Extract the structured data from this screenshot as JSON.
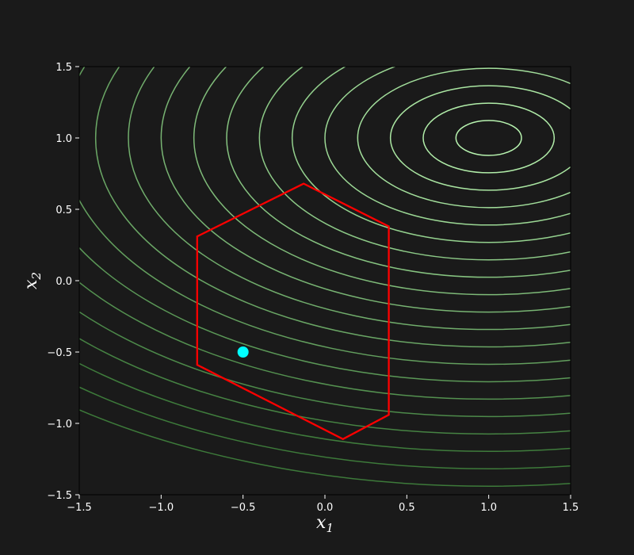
{
  "chart_data": {
    "type": "contour",
    "title": "",
    "xlabel": "x",
    "xlabel_sub": "1",
    "ylabel": "x",
    "ylabel_sub": "2",
    "xlim": [
      -1.5,
      1.5
    ],
    "ylim": [
      -1.5,
      1.5
    ],
    "xticks": [
      -1.5,
      -1.0,
      -0.5,
      0.0,
      0.5,
      1.0,
      1.5
    ],
    "yticks": [
      -1.5,
      -1.0,
      -0.5,
      0.0,
      0.5,
      1.0,
      1.5
    ],
    "xtick_labels": [
      "−1.5",
      "−1.0",
      "−0.5",
      "0.0",
      "0.5",
      "1.0",
      "1.5"
    ],
    "ytick_labels": [
      "−1.5",
      "−1.0",
      "−0.5",
      "0.0",
      "0.5",
      "1.0",
      "1.5"
    ],
    "grid": false,
    "background_color": "#1a1a1a",
    "contours": {
      "center": [
        1.0,
        1.0
      ],
      "x_radius_factor": 1.0,
      "y_radius_factor": 0.61,
      "x_radii": [
        0.2,
        0.4,
        0.6,
        0.8,
        1.0,
        1.2,
        1.4,
        1.6,
        1.8,
        2.0,
        2.2,
        2.4,
        2.6,
        2.8,
        3.0,
        3.2,
        3.4,
        3.6,
        3.8,
        4.0
      ],
      "color_light": "#b8f4b0",
      "color_dark": "#3d7a3a"
    },
    "polygon": {
      "vertices": [
        [
          -0.13,
          0.68
        ],
        [
          0.39,
          0.38
        ],
        [
          0.39,
          -0.94
        ],
        [
          0.11,
          -1.11
        ],
        [
          -0.78,
          -0.59
        ],
        [
          -0.78,
          0.31
        ]
      ],
      "color": "#ff0000"
    },
    "point": {
      "x": -0.5,
      "y": -0.5,
      "color": "#00ffff"
    }
  }
}
